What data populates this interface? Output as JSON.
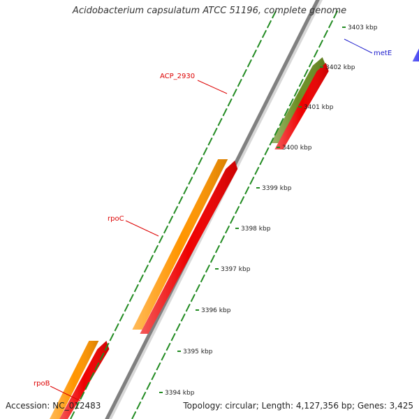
{
  "title": "Acidobacterium capsulatum ATCC 51196, complete genome",
  "footer": {
    "accession": "Accession: NC_012483",
    "summary": "Topology: circular; Length: 4,127,356 bp; Genes: 3,425"
  },
  "ticks": [
    "3403 kbp",
    "3402 kbp",
    "3401 kbp",
    "3400 kbp",
    "3399 kbp",
    "3398 kbp",
    "3397 kbp",
    "3396 kbp",
    "3395 kbp",
    "3394 kbp"
  ],
  "genes": [
    {
      "label": "metE",
      "label_color": "#1a1acc",
      "fill": "#1010ee",
      "strand": "forward"
    },
    {
      "label": "ACP_2930",
      "label_color": "#dd0000",
      "fill": "#6b8e23",
      "strand": "forward"
    },
    {
      "label": "rpoC",
      "label_color": "#dd0000",
      "fill": "#ff9500",
      "strand": "forward"
    },
    {
      "label": "rpoB",
      "label_color": "#dd0000",
      "fill": "#ff9500",
      "strand": "forward"
    }
  ],
  "cds_color": "#ee0000",
  "second_feature_color": "#4682b4",
  "backbone_color": "#808080",
  "tick_color": "#228b22"
}
